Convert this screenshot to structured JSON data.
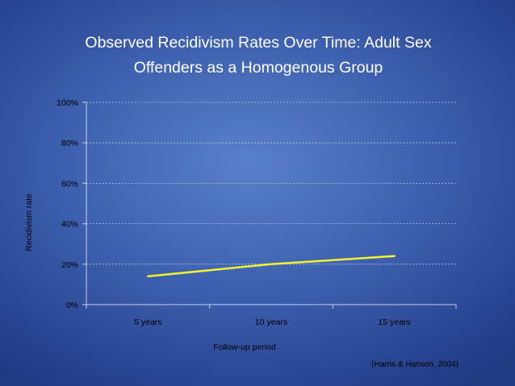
{
  "chart_data": {
    "type": "line",
    "title_lines": [
      "Observed Recidivism Rates Over Time: Adult Sex",
      "Offenders as a Homogenous Group"
    ],
    "categories": [
      "5 years",
      "10 years",
      "15 years"
    ],
    "series": [
      {
        "values": [
          14,
          20,
          24
        ]
      }
    ],
    "xlabel": "Follow-up period",
    "ylabel": "Recidivism rate",
    "ylim": [
      0,
      100
    ],
    "yticks": [
      0,
      20,
      40,
      60,
      80,
      100
    ],
    "ytick_labels": [
      "0%",
      "20%",
      "40%",
      "60%",
      "80%",
      "100%"
    ],
    "grid": true,
    "legend": "none",
    "source_note": "(Harris & Hanson, 2004)",
    "colors": {
      "line": "#f2f230",
      "grid": "#b8c6e8",
      "axis": "#c8d2ee",
      "text": "#000000",
      "title": "#ffffff"
    }
  }
}
